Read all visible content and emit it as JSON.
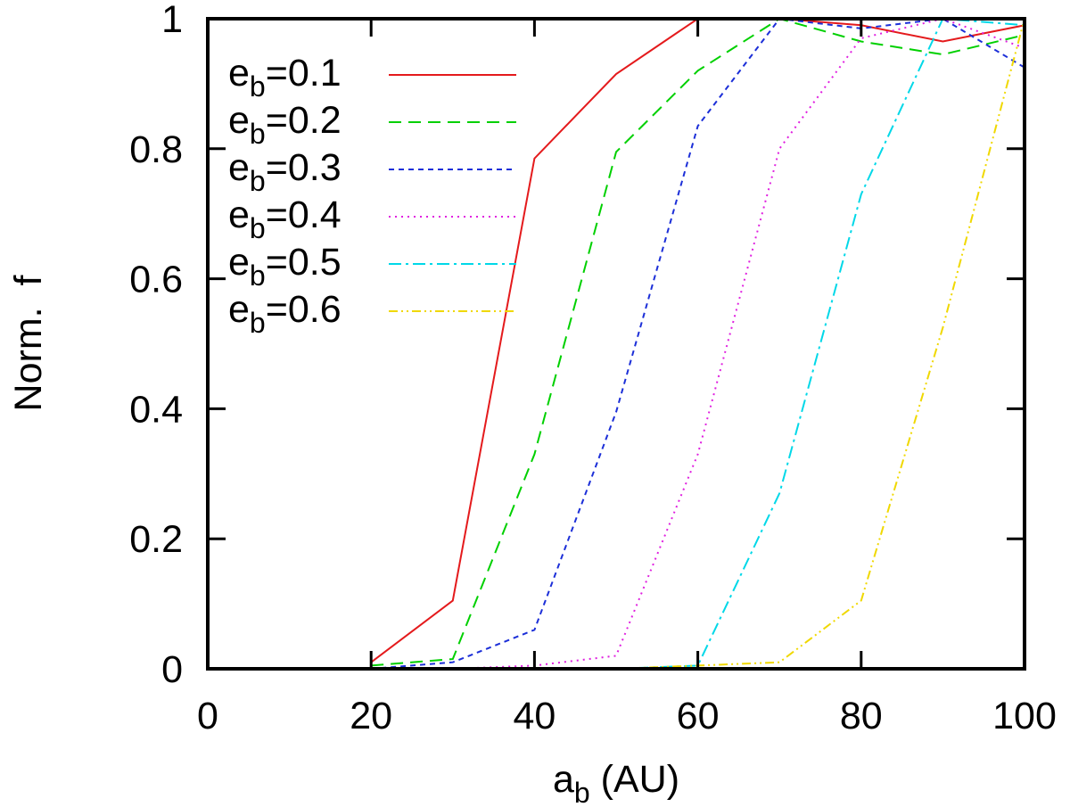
{
  "chart_data": {
    "type": "line",
    "xlabel": "a_b (AU)",
    "xlabel_main": "a",
    "xlabel_sub": "b",
    "xlabel_rest": " (AU)",
    "ylabel": "Norm.  f",
    "xlim": [
      0,
      100
    ],
    "ylim": [
      0,
      1
    ],
    "xticks": [
      0,
      20,
      40,
      60,
      80,
      100
    ],
    "yticks": [
      0,
      0.2,
      0.4,
      0.6,
      0.8,
      1
    ],
    "xtick_labels": [
      "0",
      "20",
      "40",
      "60",
      "80",
      "100"
    ],
    "ytick_labels": [
      "0",
      "0.2",
      "0.4",
      "0.6",
      "0.8",
      "1"
    ],
    "grid": false,
    "legend_position": "top-left",
    "x": [
      20,
      30,
      40,
      50,
      60,
      70,
      80,
      90,
      100
    ],
    "series": [
      {
        "name": "e_b=0.1",
        "label_main": "e",
        "label_sub": "b",
        "label_rest": "=0.1",
        "color": "#e41a1c",
        "dash": "solid",
        "values": [
          0.01,
          0.105,
          0.785,
          0.915,
          1.0,
          1.0,
          0.99,
          0.965,
          0.99
        ]
      },
      {
        "name": "e_b=0.2",
        "label_main": "e",
        "label_sub": "b",
        "label_rest": "=0.2",
        "color": "#00d000",
        "dash": "dashed",
        "values": [
          0.005,
          0.015,
          0.33,
          0.795,
          0.92,
          1.0,
          0.965,
          0.945,
          0.975
        ]
      },
      {
        "name": "e_b=0.3",
        "label_main": "e",
        "label_sub": "b",
        "label_rest": "=0.3",
        "color": "#1c2fd8",
        "dash": "short-dashed",
        "values": [
          0.0,
          0.01,
          0.06,
          0.395,
          0.835,
          1.0,
          0.985,
          1.0,
          0.925
        ]
      },
      {
        "name": "e_b=0.4",
        "label_main": "e",
        "label_sub": "b",
        "label_rest": "=0.4",
        "color": "#e020e0",
        "dash": "dotted",
        "values": [
          0.0,
          0.0,
          0.005,
          0.02,
          0.33,
          0.8,
          0.97,
          1.0,
          0.955
        ]
      },
      {
        "name": "e_b=0.5",
        "label_main": "e",
        "label_sub": "b",
        "label_rest": "=0.5",
        "color": "#00d8e8",
        "dash": "dash-dot",
        "values": [
          0.0,
          0.0,
          0.0,
          0.0,
          0.005,
          0.27,
          0.73,
          1.0,
          0.99
        ]
      },
      {
        "name": "e_b=0.6",
        "label_main": "e",
        "label_sub": "b",
        "label_rest": "=0.6",
        "color": "#f0d800",
        "dash": "dash-dot-dot",
        "values": [
          0.0,
          0.0,
          0.0,
          0.0,
          0.005,
          0.01,
          0.105,
          0.525,
          1.0
        ]
      }
    ]
  }
}
